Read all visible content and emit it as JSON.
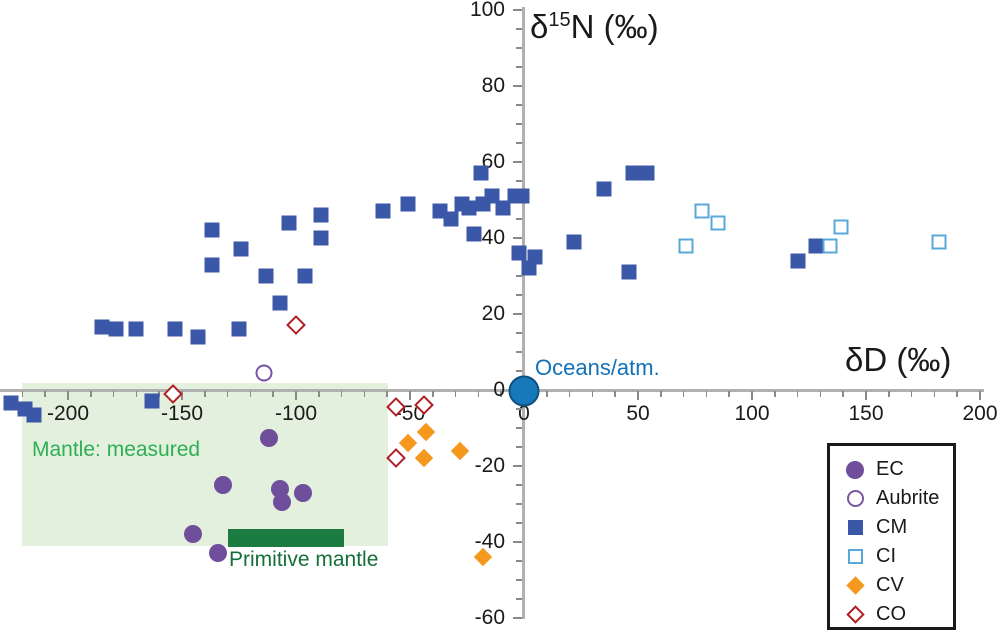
{
  "chart_data": {
    "type": "scatter",
    "title": "",
    "xlabel": "δD (‰)",
    "ylabel": "δ15N (‰)",
    "ylabel_parts": {
      "delta": "δ",
      "sup": "15",
      "rest": "N (‰)"
    },
    "xlim": [
      -230,
      200
    ],
    "ylim": [
      -60,
      100
    ],
    "x_ticks": [
      -200,
      -150,
      -100,
      -50,
      0,
      50,
      100,
      150,
      200
    ],
    "y_ticks": [
      -60,
      -40,
      -20,
      0,
      20,
      40,
      60,
      80,
      100
    ],
    "x_minor_step": 10,
    "y_minor_step": 5,
    "grid": false,
    "legend_position": "bottom-right",
    "series": [
      {
        "name": "EC",
        "marker": "circle",
        "variant": "filled",
        "color": "#6f4f9b",
        "points": [
          [
            -112,
            -12.5
          ],
          [
            -132,
            -25
          ],
          [
            -107,
            -26
          ],
          [
            -106,
            -29.5
          ],
          [
            -97,
            -27
          ],
          [
            -145,
            -38
          ],
          [
            -134,
            -43
          ]
        ]
      },
      {
        "name": "Aubrite",
        "marker": "circle",
        "variant": "open",
        "color": "#7b55a4",
        "points": [
          [
            -114,
            4.5
          ]
        ]
      },
      {
        "name": "CM",
        "marker": "square",
        "variant": "filled",
        "color": "#3b57a7",
        "points": [
          [
            -225,
            -3.5
          ],
          [
            -219,
            -5
          ],
          [
            -215,
            -6.5
          ],
          [
            -163,
            -3
          ],
          [
            -185,
            16.5
          ],
          [
            -179,
            16
          ],
          [
            -170,
            16
          ],
          [
            -153,
            16
          ],
          [
            -143,
            14
          ],
          [
            -125,
            16
          ],
          [
            -137,
            42
          ],
          [
            -124,
            37
          ],
          [
            -137,
            33
          ],
          [
            -113,
            30
          ],
          [
            -107,
            23
          ],
          [
            -103,
            44
          ],
          [
            -96,
            30
          ],
          [
            -89,
            46
          ],
          [
            -89,
            40
          ],
          [
            -62,
            47
          ],
          [
            -51,
            49
          ],
          [
            -37,
            47
          ],
          [
            -32,
            45
          ],
          [
            -27,
            49
          ],
          [
            -24,
            48
          ],
          [
            -22,
            41
          ],
          [
            -19,
            57
          ],
          [
            -18,
            49
          ],
          [
            -14,
            51
          ],
          [
            -9,
            48
          ],
          [
            -4,
            51
          ],
          [
            -1,
            51
          ],
          [
            -2,
            36
          ],
          [
            2,
            32
          ],
          [
            5,
            35
          ],
          [
            22,
            39
          ],
          [
            35,
            53
          ],
          [
            46,
            31
          ],
          [
            48,
            57
          ],
          [
            54,
            57
          ],
          [
            120,
            34
          ],
          [
            128,
            38
          ]
        ]
      },
      {
        "name": "CI",
        "marker": "square",
        "variant": "open",
        "color": "#58a8d9",
        "points": [
          [
            71,
            38
          ],
          [
            78,
            47
          ],
          [
            85,
            44
          ],
          [
            134,
            38
          ],
          [
            139,
            43
          ],
          [
            182,
            39
          ]
        ]
      },
      {
        "name": "CV",
        "marker": "diamond",
        "variant": "filled",
        "color": "#f5991e",
        "points": [
          [
            -51,
            -14
          ],
          [
            -43,
            -11
          ],
          [
            -44,
            -18
          ],
          [
            -28,
            -16
          ],
          [
            -18,
            -44
          ]
        ]
      },
      {
        "name": "CO",
        "marker": "diamond",
        "variant": "open",
        "color": "#b01e24",
        "points": [
          [
            -100,
            17
          ],
          [
            -154,
            -1
          ],
          [
            -56,
            -4.5
          ],
          [
            -44,
            -4
          ],
          [
            -56,
            -18
          ]
        ]
      }
    ],
    "annotations": {
      "oceans": {
        "label": "Oceans/atm.",
        "x": 0,
        "y": 0,
        "dot_color": "#1779ba",
        "text_color": "#1371b8"
      },
      "mantle_box": {
        "label": "Mantle: measured",
        "x_range": [
          -220,
          -60
        ],
        "y_range": [
          -41,
          2
        ],
        "fill": "#e2f0dd",
        "label_color": "#2faf55"
      },
      "primitive_bar": {
        "label": "Primitive mantle",
        "x_range": [
          -130,
          -79
        ],
        "y_range": [
          -41,
          -36.5
        ],
        "fill": "#1c7b40",
        "label_color": "#156f39"
      }
    }
  },
  "legend": {
    "entries": [
      "EC",
      "Aubrite",
      "CM",
      "CI",
      "CV",
      "CO"
    ]
  },
  "colors": {
    "axis_line": "#b0b0b0",
    "tick": "#8a8a8a",
    "text": "#1a1a1a"
  }
}
